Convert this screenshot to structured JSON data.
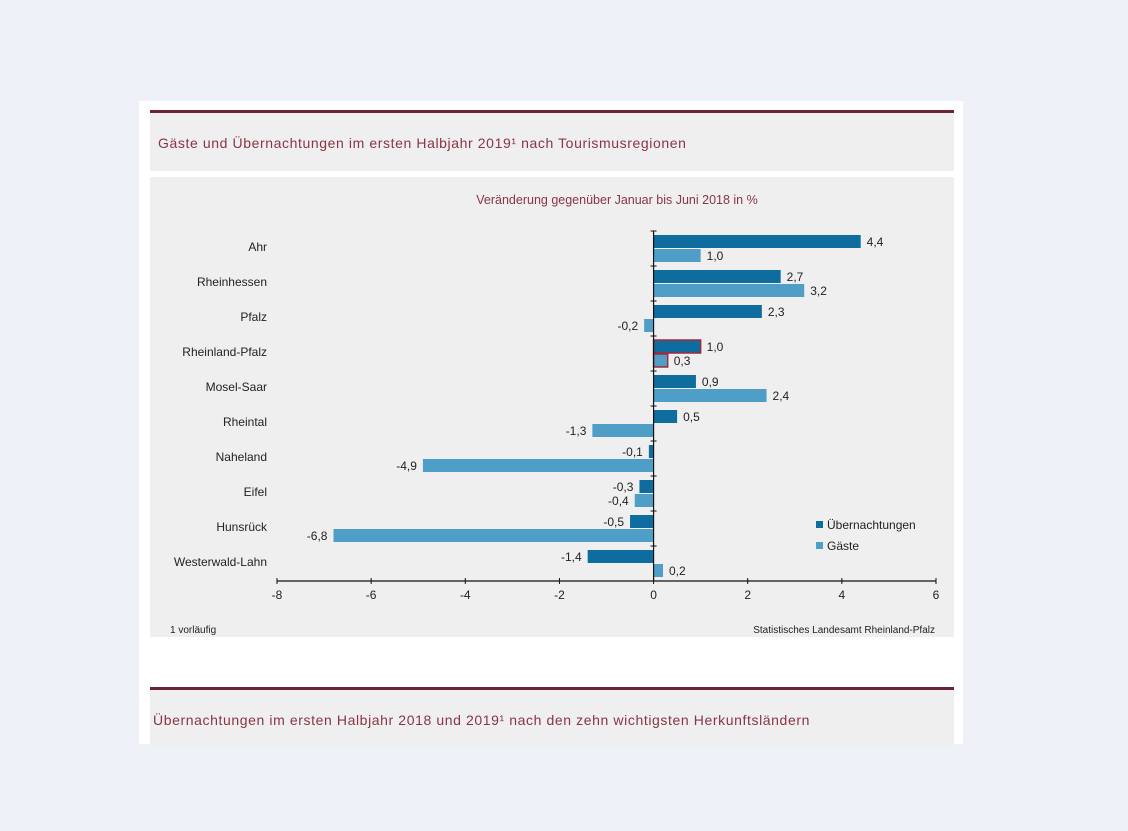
{
  "header": {
    "title": "Gäste und Übernachtungen im ersten Halbjahr 2019¹ nach Tourismusregionen"
  },
  "next_section": {
    "title": "Übernachtungen im ersten Halbjahr 2018 und 2019¹ nach den zehn wichtigsten Herkunftsländern"
  },
  "colors": {
    "uebernachtungen": "#0e6c9e",
    "gaeste": "#4f9ec8",
    "highlight_border": "#a02a3c",
    "title_text": "#8a3446",
    "accent_line": "#6b2433"
  },
  "chart_data": {
    "type": "bar",
    "orientation": "horizontal",
    "title": "Veränderung gegenüber Januar bis Juni 2018 in %",
    "xlabel": "",
    "ylabel": "",
    "categories": [
      "Ahr",
      "Rheinhessen",
      "Pfalz",
      "Rheinland-Pfalz",
      "Mosel-Saar",
      "Rheintal",
      "Naheland",
      "Eifel",
      "Hunsrück",
      "Westerwald-Lahn"
    ],
    "highlight_category": "Rheinland-Pfalz",
    "series": [
      {
        "name": "Übernachtungen",
        "values": [
          4.4,
          2.7,
          2.3,
          1.0,
          0.9,
          0.5,
          -0.1,
          -0.3,
          -0.5,
          -1.4
        ]
      },
      {
        "name": "Gäste",
        "values": [
          1.0,
          3.2,
          -0.2,
          0.3,
          2.4,
          -1.3,
          -4.9,
          -0.4,
          -6.8,
          0.2
        ]
      }
    ],
    "data_labels": {
      "Übernachtungen": [
        "4,4",
        "2,7",
        "2,3",
        "1,0",
        "0,9",
        "0,5",
        "-0,1",
        "-0,3",
        "-0,5",
        "-1,4"
      ],
      "Gäste": [
        "1,0",
        "3,2",
        "-0,2",
        "0,3",
        "2,4",
        "-1,3",
        "-4,9",
        "-0,4",
        "-6,8",
        "0,2"
      ]
    },
    "xlim": [
      -8,
      6
    ],
    "xticks": [
      -8,
      -6,
      -4,
      -2,
      0,
      2,
      4,
      6
    ],
    "xtick_labels": [
      "-8",
      "-6",
      "-4",
      "-2",
      "0",
      "2",
      "4",
      "6"
    ],
    "grid": false,
    "legend_position": "bottom-right",
    "footnote": "1 vorläufig",
    "source": "Statistisches Landesamt Rheinland-Pfalz"
  }
}
